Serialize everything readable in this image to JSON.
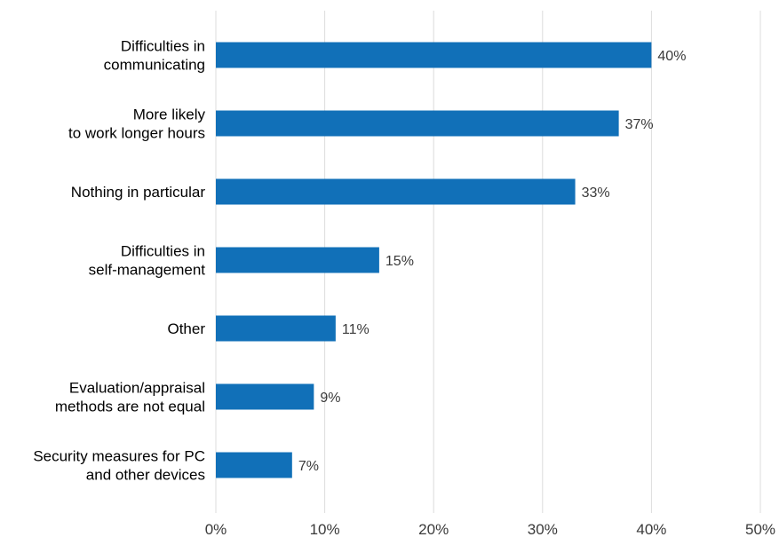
{
  "chart_data": {
    "type": "bar",
    "orientation": "horizontal",
    "categories": [
      [
        "Difficulties in",
        "communicating"
      ],
      [
        "More likely",
        "to work longer hours"
      ],
      [
        "Nothing in particular"
      ],
      [
        "Difficulties in",
        "self-management"
      ],
      [
        "Other"
      ],
      [
        "Evaluation/appraisal",
        "methods are not equal"
      ],
      [
        "Security measures for PC",
        "and other devices"
      ]
    ],
    "values": [
      40,
      37,
      33,
      15,
      11,
      9,
      7
    ],
    "value_labels": [
      "40%",
      "37%",
      "33%",
      "15%",
      "11%",
      "9%",
      "7%"
    ],
    "x_ticks": [
      0,
      10,
      20,
      30,
      40,
      50
    ],
    "x_tick_labels": [
      "0%",
      "10%",
      "20%",
      "30%",
      "40%",
      "50%"
    ],
    "xlim": [
      0,
      50
    ],
    "grid": "vertical",
    "bar_color": "#1170b8"
  }
}
